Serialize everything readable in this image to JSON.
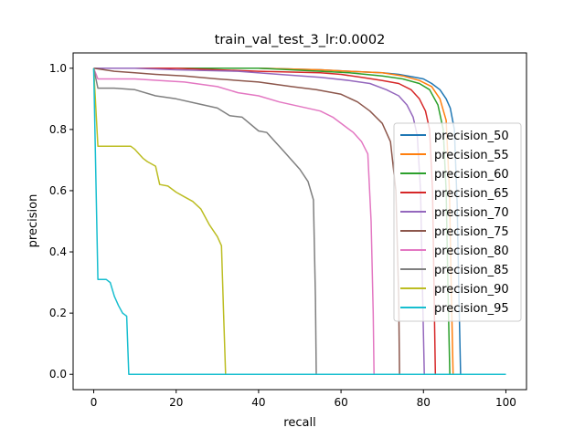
{
  "chart_data": {
    "type": "line",
    "title": "train_val_test_3_lr:0.0002",
    "xlabel": "recall",
    "ylabel": "precision",
    "xlim": [
      -5,
      105
    ],
    "ylim": [
      -0.05,
      1.05
    ],
    "xticks": [
      0,
      20,
      40,
      60,
      80,
      100
    ],
    "yticks": [
      0.0,
      0.2,
      0.4,
      0.6,
      0.8,
      1.0
    ],
    "xtick_labels": [
      "0",
      "20",
      "40",
      "60",
      "80",
      "100"
    ],
    "ytick_labels": [
      "0.0",
      "0.2",
      "0.4",
      "0.6",
      "0.8",
      "1.0"
    ],
    "grid": false,
    "legend_position": "center-right",
    "series": [
      {
        "name": "precision_50",
        "color": "#1f77b4",
        "x": [
          0,
          10,
          20,
          40,
          55,
          62,
          70,
          74,
          78,
          80,
          82,
          84,
          85.5,
          86.5,
          87.5,
          88.2,
          88.6,
          89,
          100
        ],
        "y": [
          1.0,
          1.0,
          1.0,
          1.0,
          0.995,
          0.99,
          0.985,
          0.98,
          0.97,
          0.965,
          0.95,
          0.93,
          0.9,
          0.87,
          0.8,
          0.55,
          0.25,
          0.0,
          0.0
        ]
      },
      {
        "name": "precision_55",
        "color": "#ff7f0e",
        "x": [
          0,
          10,
          20,
          40,
          55,
          62,
          70,
          75,
          79,
          82,
          84,
          85.5,
          86.3,
          86.8,
          87.2,
          100
        ],
        "y": [
          1.0,
          1.0,
          1.0,
          1.0,
          0.995,
          0.99,
          0.985,
          0.975,
          0.96,
          0.94,
          0.9,
          0.83,
          0.6,
          0.25,
          0.0,
          0.0
        ]
      },
      {
        "name": "precision_60",
        "color": "#2ca02c",
        "x": [
          0,
          10,
          20,
          40,
          55,
          62,
          70,
          75,
          79,
          81.5,
          83.5,
          84.8,
          85.5,
          86,
          86.4,
          100
        ],
        "y": [
          1.0,
          1.0,
          1.0,
          1.0,
          0.99,
          0.985,
          0.975,
          0.965,
          0.95,
          0.93,
          0.88,
          0.8,
          0.6,
          0.25,
          0.0,
          0.0
        ]
      },
      {
        "name": "precision_65",
        "color": "#d62728",
        "x": [
          0,
          10,
          20,
          40,
          55,
          60,
          65,
          70,
          74,
          77,
          79,
          80.5,
          81.5,
          82.2,
          82.6,
          82.9,
          100
        ],
        "y": [
          1.0,
          1.0,
          1.0,
          0.99,
          0.985,
          0.98,
          0.97,
          0.96,
          0.95,
          0.93,
          0.9,
          0.86,
          0.8,
          0.6,
          0.25,
          0.0,
          0.0
        ]
      },
      {
        "name": "precision_70",
        "color": "#9467bd",
        "x": [
          0,
          10,
          20,
          35,
          45,
          55,
          62,
          67,
          71,
          74,
          76,
          77.5,
          78.5,
          79.3,
          79.8,
          80.2,
          100
        ],
        "y": [
          1.0,
          1.0,
          0.995,
          0.99,
          0.98,
          0.97,
          0.96,
          0.95,
          0.93,
          0.91,
          0.88,
          0.84,
          0.78,
          0.6,
          0.25,
          0.0,
          0.0
        ]
      },
      {
        "name": "precision_75",
        "color": "#8c564b",
        "x": [
          0,
          5,
          10,
          15,
          22,
          30,
          40,
          48,
          54,
          60,
          64,
          67,
          70,
          72,
          73.3,
          74,
          74.2,
          100
        ],
        "y": [
          1.0,
          0.99,
          0.985,
          0.98,
          0.975,
          0.965,
          0.955,
          0.94,
          0.93,
          0.915,
          0.89,
          0.86,
          0.82,
          0.76,
          0.6,
          0.25,
          0.0,
          0.0
        ]
      },
      {
        "name": "precision_80",
        "color": "#e377c2",
        "x": [
          0,
          1,
          5,
          10,
          16,
          22,
          30,
          35,
          40,
          45,
          50,
          55,
          58,
          61,
          63,
          65,
          66.5,
          67.3,
          67.8,
          68,
          100
        ],
        "y": [
          1.0,
          0.965,
          0.965,
          0.965,
          0.96,
          0.955,
          0.94,
          0.92,
          0.91,
          0.89,
          0.875,
          0.86,
          0.84,
          0.81,
          0.79,
          0.76,
          0.72,
          0.5,
          0.2,
          0.0,
          0.0
        ]
      },
      {
        "name": "precision_85",
        "color": "#7f7f7f",
        "x": [
          0,
          1,
          5,
          10,
          15,
          20,
          25,
          30,
          33,
          36,
          40,
          42,
          44,
          46,
          48,
          50,
          52,
          53.3,
          53.8,
          54,
          100
        ],
        "y": [
          1.0,
          0.935,
          0.935,
          0.93,
          0.91,
          0.9,
          0.885,
          0.87,
          0.845,
          0.84,
          0.795,
          0.79,
          0.76,
          0.73,
          0.7,
          0.67,
          0.63,
          0.57,
          0.25,
          0.0,
          0.0
        ]
      },
      {
        "name": "precision_90",
        "color": "#bcbd22",
        "x": [
          0,
          1,
          5,
          9,
          10,
          11,
          12,
          13,
          15,
          16,
          18,
          20,
          22,
          24,
          26,
          28,
          30,
          31,
          31.5,
          32,
          100
        ],
        "y": [
          1.0,
          0.745,
          0.745,
          0.745,
          0.735,
          0.72,
          0.705,
          0.695,
          0.68,
          0.62,
          0.615,
          0.595,
          0.58,
          0.565,
          0.54,
          0.49,
          0.45,
          0.42,
          0.2,
          0.0,
          0.0
        ]
      },
      {
        "name": "precision_95",
        "color": "#17becf",
        "x": [
          0,
          1,
          3,
          4,
          5,
          6,
          7,
          7.5,
          8,
          8.5,
          9,
          100
        ],
        "y": [
          1.0,
          0.31,
          0.31,
          0.3,
          0.255,
          0.225,
          0.2,
          0.195,
          0.19,
          0.0,
          0.0,
          0.0
        ]
      }
    ]
  }
}
